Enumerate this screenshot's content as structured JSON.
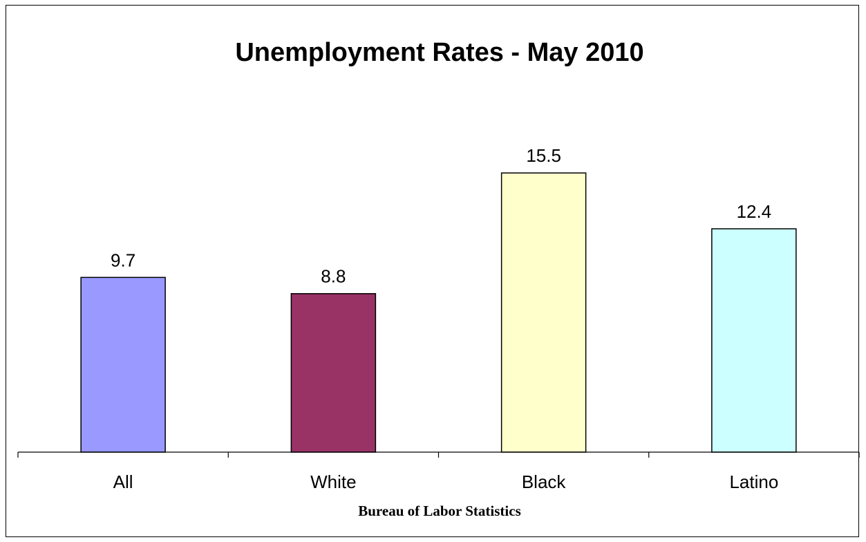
{
  "chart_data": {
    "type": "bar",
    "title": "Unemployment Rates - May 2010",
    "xlabel": "Bureau of Labor Statistics",
    "ylabel": "",
    "categories": [
      "All",
      "White",
      "Black",
      "Latino"
    ],
    "values": [
      9.7,
      8.8,
      15.5,
      12.4
    ],
    "value_labels": [
      "9.7",
      "8.8",
      "15.5",
      "12.4"
    ],
    "colors": [
      "#9999FF",
      "#993366",
      "#FFFFCC",
      "#CCFFFF"
    ],
    "ylim": [
      0,
      22.8
    ],
    "grid": false,
    "legend": "none"
  }
}
